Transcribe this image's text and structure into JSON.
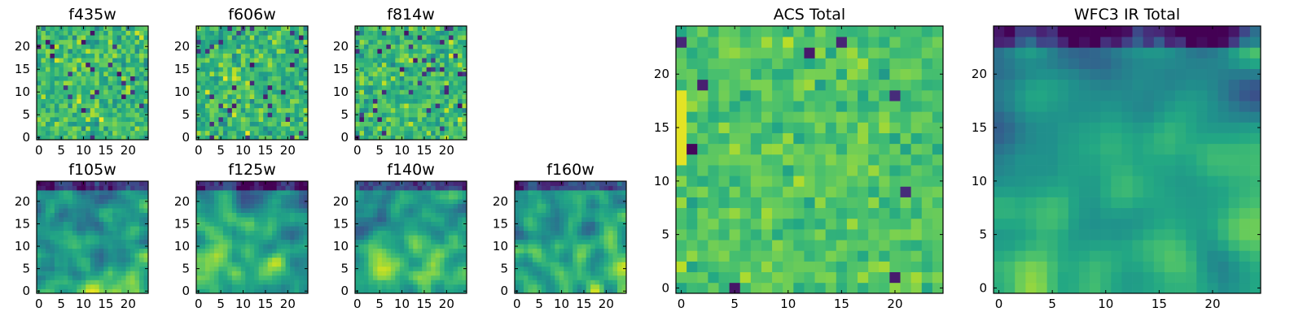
{
  "chart_data": [
    {
      "id": "f435w",
      "type": "heatmap",
      "title": "f435w",
      "size": 25,
      "xticks": [
        0,
        5,
        10,
        15,
        20
      ],
      "yticks": [
        0,
        5,
        10,
        15,
        20
      ],
      "xlim": [
        -0.5,
        24.5
      ],
      "ylim": [
        -0.5,
        24.5
      ],
      "colormap": "viridis",
      "pattern": "noise",
      "seed": 11
    },
    {
      "id": "f606w",
      "type": "heatmap",
      "title": "f606w",
      "size": 25,
      "xticks": [
        0,
        5,
        10,
        15,
        20
      ],
      "yticks": [
        0,
        5,
        10,
        15,
        20
      ],
      "xlim": [
        -0.5,
        24.5
      ],
      "ylim": [
        -0.5,
        24.5
      ],
      "colormap": "viridis",
      "pattern": "noise",
      "seed": 23
    },
    {
      "id": "f814w",
      "type": "heatmap",
      "title": "f814w",
      "size": 25,
      "xticks": [
        0,
        5,
        10,
        15,
        20
      ],
      "yticks": [
        0,
        5,
        10,
        15,
        20
      ],
      "xlim": [
        -0.5,
        24.5
      ],
      "ylim": [
        -0.5,
        24.5
      ],
      "colormap": "viridis",
      "pattern": "noise",
      "seed": 37
    },
    {
      "id": "f105w",
      "type": "heatmap",
      "title": "f105w",
      "size": 25,
      "xticks": [
        0,
        5,
        10,
        15,
        20
      ],
      "yticks": [
        0,
        5,
        10,
        15,
        20
      ],
      "xlim": [
        -0.5,
        24.5
      ],
      "ylim": [
        -0.5,
        24.5
      ],
      "colormap": "viridis",
      "pattern": "ir",
      "seed": 41
    },
    {
      "id": "f125w",
      "type": "heatmap",
      "title": "f125w",
      "size": 25,
      "xticks": [
        0,
        5,
        10,
        15,
        20
      ],
      "yticks": [
        0,
        5,
        10,
        15,
        20
      ],
      "xlim": [
        -0.5,
        24.5
      ],
      "ylim": [
        -0.5,
        24.5
      ],
      "colormap": "viridis",
      "pattern": "ir",
      "seed": 53
    },
    {
      "id": "f140w",
      "type": "heatmap",
      "title": "f140w",
      "size": 25,
      "xticks": [
        0,
        5,
        10,
        15,
        20
      ],
      "yticks": [
        0,
        5,
        10,
        15,
        20
      ],
      "xlim": [
        -0.5,
        24.5
      ],
      "ylim": [
        -0.5,
        24.5
      ],
      "colormap": "viridis",
      "pattern": "ir",
      "seed": 67
    },
    {
      "id": "f160w",
      "type": "heatmap",
      "title": "f160w",
      "size": 25,
      "xticks": [
        0,
        5,
        10,
        15,
        20
      ],
      "yticks": [
        0,
        5,
        10,
        15,
        20
      ],
      "xlim": [
        -0.5,
        24.5
      ],
      "ylim": [
        -0.5,
        24.5
      ],
      "colormap": "viridis",
      "pattern": "ir",
      "seed": 79
    },
    {
      "id": "acs_total",
      "type": "heatmap",
      "title": "ACS Total",
      "size": 25,
      "xticks": [
        0,
        5,
        10,
        15,
        20
      ],
      "yticks": [
        0,
        5,
        10,
        15,
        20
      ],
      "xlim": [
        -0.5,
        24.5
      ],
      "ylim": [
        -0.5,
        24.5
      ],
      "colormap": "viridis",
      "pattern": "acs",
      "seed": 97
    },
    {
      "id": "wfc3_total",
      "type": "heatmap",
      "title": "WFC3 IR Total",
      "size": 25,
      "xticks": [
        0,
        5,
        10,
        15,
        20
      ],
      "yticks": [
        0,
        5,
        10,
        15,
        20
      ],
      "xlim": [
        -0.5,
        24.5
      ],
      "ylim": [
        -0.5,
        24.5
      ],
      "colormap": "viridis",
      "pattern": "ir_total",
      "seed": 113
    }
  ]
}
